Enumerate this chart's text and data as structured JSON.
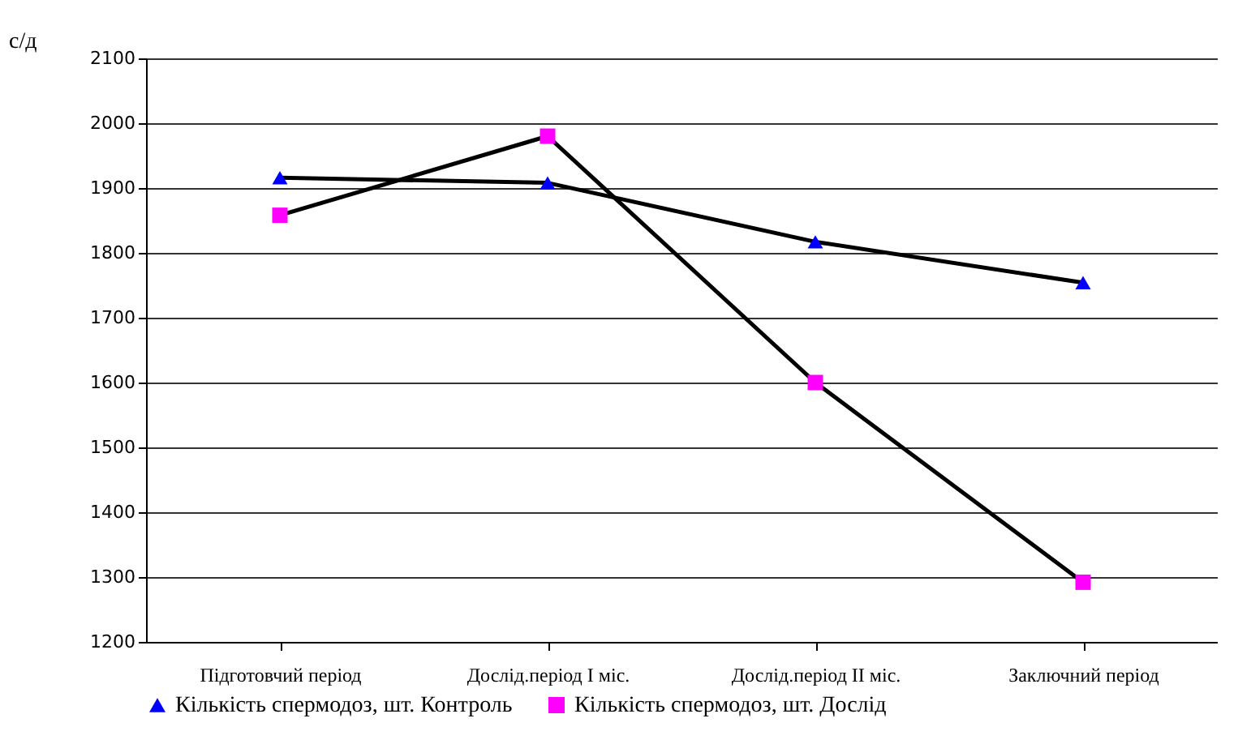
{
  "chart_data": {
    "type": "line",
    "ylabel": "с/д",
    "categories": [
      "Підготовчий період",
      "Дослід.період І міс.",
      "Дослід.період ІІ міс.",
      "Заключний період"
    ],
    "series": [
      {
        "name": "Кількість спермодоз, шт. Контроль",
        "color": "#0000ff",
        "marker": "triangle",
        "values": [
          1916,
          1908,
          1817,
          1754
        ]
      },
      {
        "name": "Кількість спермодоз, шт. Дослід",
        "color": "#ff00ff",
        "marker": "square",
        "values": [
          1858,
          1980,
          1600,
          1292
        ]
      }
    ],
    "ylim": [
      1200,
      2100
    ],
    "yticks": [
      1200,
      1300,
      1400,
      1500,
      1600,
      1700,
      1800,
      1900,
      2000,
      2100
    ],
    "grid": "y",
    "legend": "bottom",
    "line_style": "solid"
  }
}
